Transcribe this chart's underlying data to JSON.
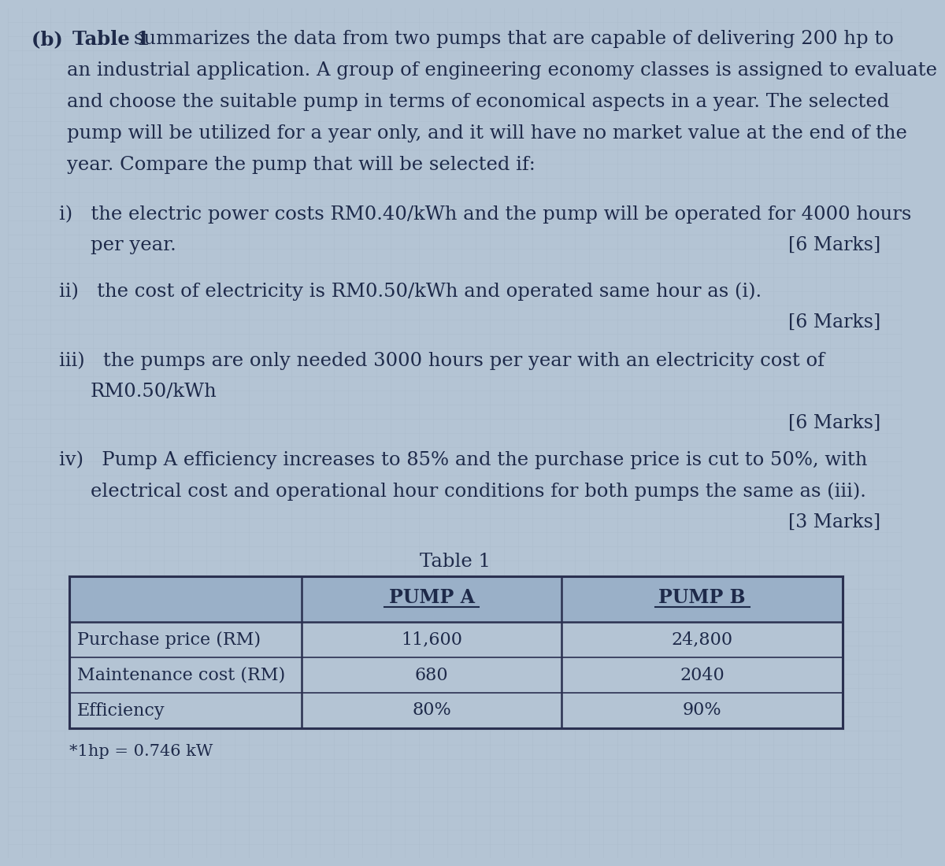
{
  "background_color": "#b4c4d4",
  "grid_color": "#a8baca",
  "text_color": "#1e2a4a",
  "part_label": "(b)",
  "table_title": "Table 1",
  "table_header": [
    "",
    "PUMP A",
    "PUMP B"
  ],
  "table_rows": [
    [
      "Purchase price (RM)",
      "11,600",
      "24,800"
    ],
    [
      "Maintenance cost (RM)",
      "680",
      "2040"
    ],
    [
      "Efficiency",
      "80%",
      "90%"
    ]
  ],
  "footnote": "*1hp = 0.746 kW",
  "header_bg_color": "#9ab0c8",
  "table_border_color": "#2a3050",
  "font_size_body": 17.5,
  "font_size_marks": 17,
  "font_size_table": 16,
  "line1_b": "(b)   ",
  "line1_bold": "Table 1 ",
  "line1_rest": "summarizes the data from two pumps that are capable of delivering 200 hp to",
  "line2": "an industrial application. A group of engineering economy classes is assigned to evaluate",
  "line3": "and choose the suitable pump in terms of economical aspects in a year. The selected",
  "line4": "pump will be utilized for a year only, and it will have no market value at the end of the",
  "line5": "year. Compare the pump that will be selected if:",
  "item_i_line1": "i)   the electric power costs RM0.40/kWh and the pump will be operated for 4000 hours",
  "item_i_line2": "per year.",
  "item_i_marks": "[6 Marks]",
  "item_ii_line1": "ii)   the cost of electricity is RM0.50/kWh and operated same hour as (i).",
  "item_ii_marks": "[6 Marks]",
  "item_iii_line1": "iii)   the pumps are only needed 3000 hours per year with an electricity cost of",
  "item_iii_line2": "RM0.50/kWh",
  "item_iii_marks": "[6 Marks]",
  "item_iv_line1": "iv)   Pump A efficiency increases to 85% and the purchase price is cut to 50%, with",
  "item_iv_line2": "electrical cost and operational hour conditions for both pumps the same as (iii).",
  "item_iv_marks": "[3 Marks]"
}
